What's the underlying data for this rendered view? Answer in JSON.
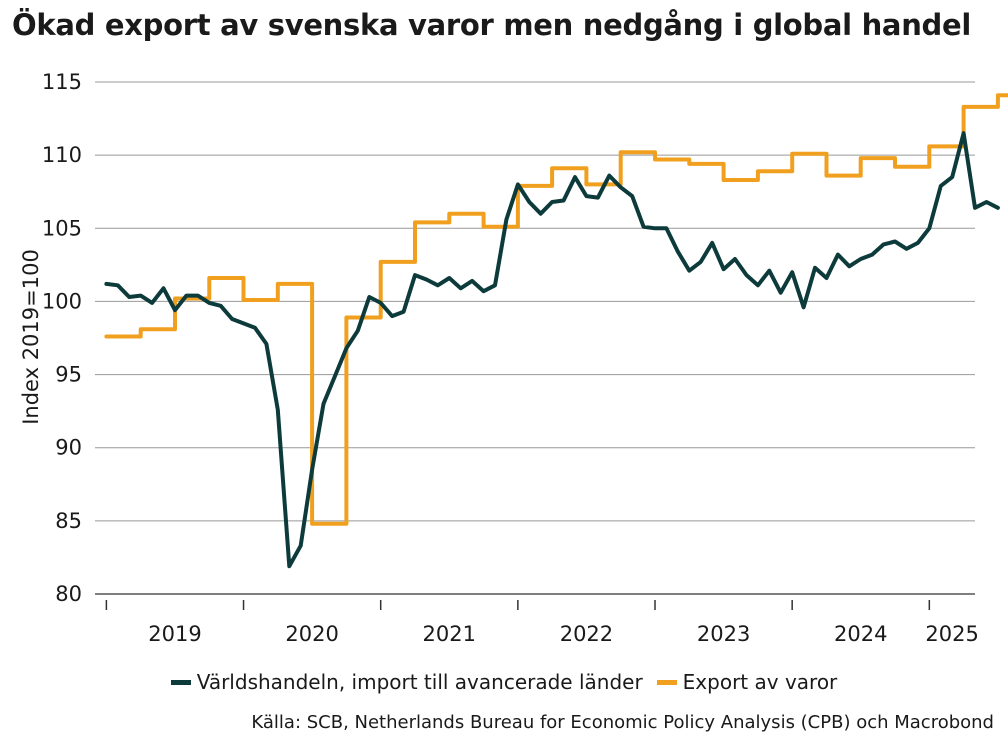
{
  "chart_data": {
    "type": "line",
    "title": "Ökad export av svenska varor men nedgång i global handel",
    "ylabel": "Index 2019=100",
    "xlabel": "",
    "ylim": [
      80,
      115
    ],
    "yticks": [
      80,
      85,
      90,
      95,
      100,
      105,
      110,
      115
    ],
    "xlim": [
      2018.917,
      2025.333
    ],
    "year_labels": [
      "2019",
      "2020",
      "2021",
      "2022",
      "2023",
      "2024",
      "2025"
    ],
    "grid": true,
    "legend_position": "bottom",
    "source": "Källa: SCB, Netherlands Bureau for Economic Policy Analysis (CPB) och Macrobond",
    "series": [
      {
        "name": "Världshandeln, import till avancerade länder",
        "color": "#0d3b3c",
        "step": false,
        "start": 2019.0,
        "step_size": 0.0833333,
        "values": [
          101.2,
          101.1,
          100.3,
          100.4,
          99.9,
          100.9,
          99.4,
          100.4,
          100.4,
          99.9,
          99.7,
          98.8,
          98.5,
          98.2,
          97.1,
          92.6,
          81.9,
          83.3,
          88.5,
          93.0,
          94.9,
          96.8,
          98.0,
          100.3,
          99.9,
          99.0,
          99.3,
          101.8,
          101.5,
          101.1,
          101.6,
          100.9,
          101.4,
          100.7,
          101.1,
          105.6,
          108.0,
          106.8,
          106.0,
          106.8,
          106.9,
          108.5,
          107.2,
          107.1,
          108.6,
          107.8,
          107.2,
          105.1,
          105.0,
          105.0,
          103.4,
          102.1,
          102.7,
          104.0,
          102.2,
          102.9,
          101.8,
          101.1,
          102.1,
          100.6,
          102.0,
          99.6,
          102.3,
          101.6,
          103.2,
          102.4,
          102.9,
          103.2,
          103.9,
          104.1,
          103.6,
          104.0,
          105.0,
          107.9,
          108.5,
          111.5,
          106.4,
          106.8,
          106.4
        ]
      },
      {
        "name": "Export av varor",
        "color": "#f0a01e",
        "step": true,
        "start": 2019.0,
        "step_size": 0.25,
        "values": [
          97.6,
          98.1,
          100.2,
          101.6,
          100.1,
          101.2,
          84.8,
          98.9,
          102.7,
          105.4,
          106.0,
          105.1,
          107.9,
          109.1,
          108.0,
          110.2,
          109.7,
          109.4,
          108.3,
          108.9,
          110.1,
          108.6,
          109.8,
          109.2,
          110.6,
          113.3,
          114.1
        ]
      }
    ]
  }
}
